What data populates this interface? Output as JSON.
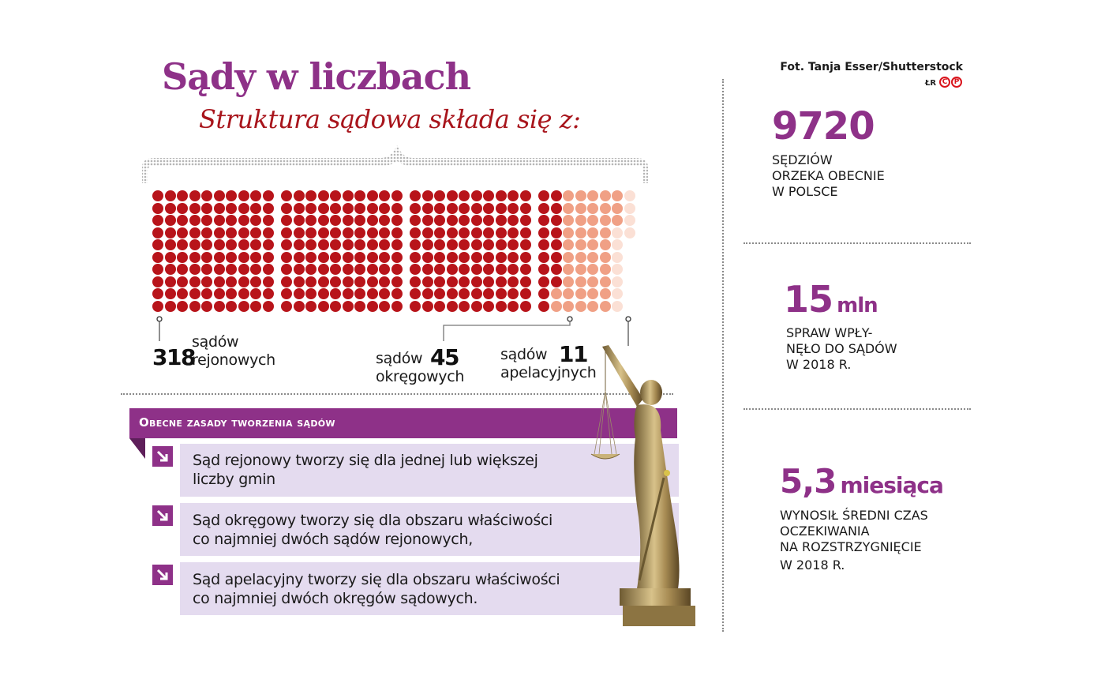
{
  "header": {
    "title": "Sądy w liczbach",
    "subtitle": "Struktura sądowa składa się z:",
    "credit": "Fot. Tanja Esser/Shutterstock",
    "author_initials": "ŁR",
    "logo_letters": [
      "C",
      "P"
    ]
  },
  "colors": {
    "accent_purple": "#8e3188",
    "dark_red": "#b8141a",
    "salmon": "#f0a085",
    "light_peach": "#fbe0d5",
    "rule_box_bg": "#e4dbef",
    "subtitle_red": "#a8151c"
  },
  "chart_data": {
    "type": "unit-dot",
    "title": "Struktura sądowa składa się z:",
    "layout": "blocks of 10x10 dots, column-major fill, 4 blocks",
    "categories": [
      "sądów rejonowych",
      "sądów okręgowych",
      "sądów apelacyjnych"
    ],
    "values": [
      318,
      45,
      11
    ],
    "colors": [
      "#b8141a",
      "#f0a085",
      "#fbe0d5"
    ],
    "total": 374
  },
  "labels": {
    "rejonowe": {
      "value": "318",
      "line1": "sądów",
      "line2": "rejonowych"
    },
    "okregowe": {
      "value": "45",
      "line1": "sądów",
      "line2": "okręgowych"
    },
    "apelacyjne": {
      "value": "11",
      "line1": "sądów",
      "line2": "apelacyjnych"
    }
  },
  "rules": {
    "heading": "Obecne zasady tworzenia sądów",
    "items": [
      {
        "line1": "Sąd rejonowy tworzy się dla jednej lub większej",
        "line2": "liczby gmin"
      },
      {
        "line1": "Sąd okręgowy tworzy się dla obszaru właściwości",
        "line2": "co najmniej dwóch sądów rejonowych,"
      },
      {
        "line1": "Sąd apelacyjny tworzy się dla obszaru właściwości",
        "line2": "co najmniej dwóch okręgów sądowych."
      }
    ]
  },
  "stats": [
    {
      "number": "9720",
      "unit": "",
      "lines": [
        "Sędziów",
        "orzeka obecnie",
        "w Polsce"
      ]
    },
    {
      "number": "15",
      "unit": "mln",
      "lines": [
        "Spraw wpły-",
        "nęło do sądów",
        "w 2018 r."
      ]
    },
    {
      "number": "5,3",
      "unit": "miesiąca",
      "lines": [
        "Wynosił średni czas",
        "oczekiwania",
        "na rozstrzygnięcie",
        "w 2018 r."
      ]
    }
  ]
}
